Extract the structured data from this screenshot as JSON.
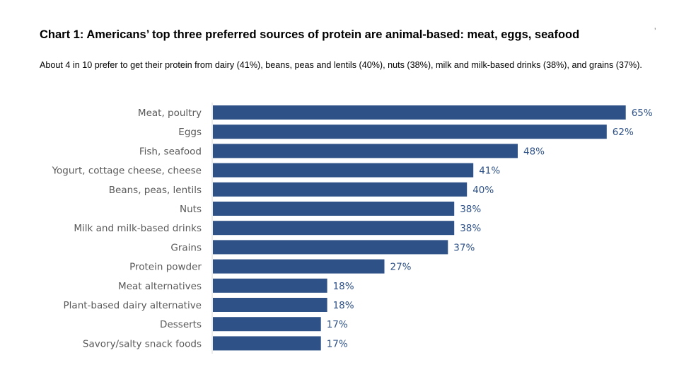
{
  "title": "Chart 1: Americans’ top three preferred sources of protein are animal-based: meat, eggs, seafood",
  "subtitle": "About 4 in 10 prefer to get their protein from dairy (41%), beans, peas and lentils (40%), nuts (38%), milk and milk-based drinks (38%), and grains (37%).",
  "corner_mark": "’",
  "colors": {
    "bar": "#2e5187",
    "value_label": "#2e5187",
    "category_label": "#595959",
    "axis_line": "#d9d9d9"
  },
  "chart_data": {
    "type": "bar",
    "orientation": "horizontal",
    "title": "Chart 1: Americans’ top three preferred sources of protein are animal-based: meat, eggs, seafood",
    "xlabel": "",
    "ylabel": "",
    "xlim": [
      0,
      65
    ],
    "grid": false,
    "categories": [
      "Meat, poultry",
      "Eggs",
      "Fish, seafood",
      "Yogurt, cottage cheese, cheese",
      "Beans, peas, lentils",
      "Nuts",
      "Milk and milk-based drinks",
      "Grains",
      "Protein powder",
      "Meat alternatives",
      "Plant-based dairy alternative",
      "Desserts",
      "Savory/salty snack foods"
    ],
    "values": [
      65,
      62,
      48,
      41,
      40,
      38,
      38,
      37,
      27,
      18,
      18,
      17,
      17
    ],
    "value_labels": [
      "65%",
      "62%",
      "48%",
      "41%",
      "40%",
      "38%",
      "38%",
      "37%",
      "27%",
      "18%",
      "18%",
      "17%",
      "17%"
    ]
  }
}
